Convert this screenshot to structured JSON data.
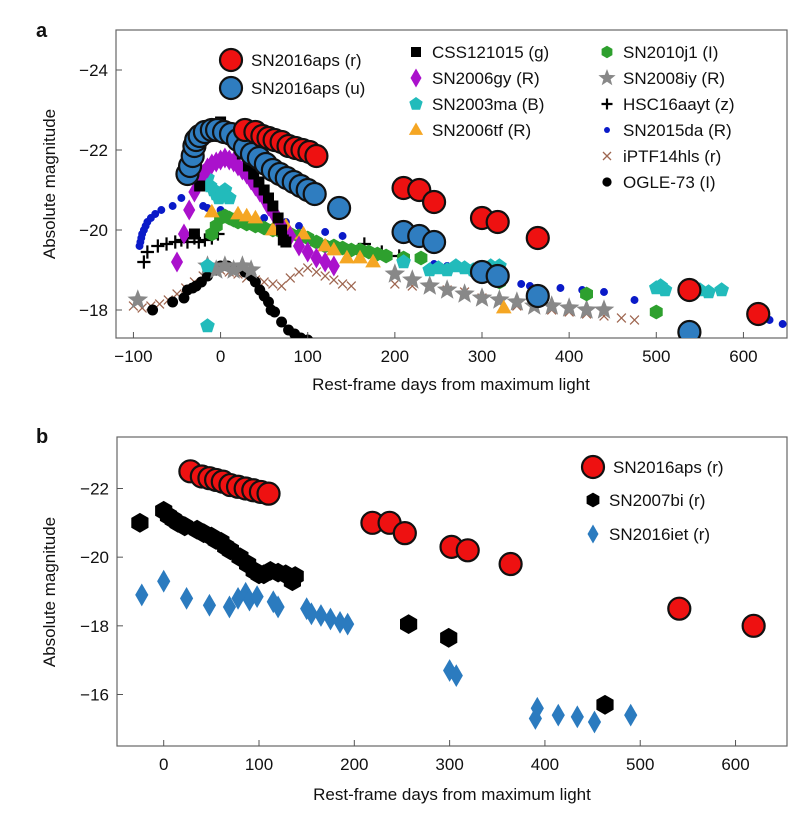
{
  "chart_data": [
    {
      "panel": "a",
      "type": "scatter",
      "title": "",
      "xlabel": "Rest-frame days from maximum light",
      "ylabel": "Absolute magnitude",
      "xlim": [
        -120,
        650
      ],
      "ylim": [
        -25.0,
        -17.3
      ],
      "y_inverted": true,
      "xticks": [
        -100,
        0,
        100,
        200,
        300,
        400,
        500,
        600
      ],
      "xtick_labels": [
        "−100",
        "0",
        "100",
        "200",
        "300",
        "400",
        "500",
        "600"
      ],
      "yticks": [
        -24,
        -22,
        -20,
        -18
      ],
      "ytick_labels": [
        "−24",
        "−22",
        "−20",
        "−18"
      ],
      "grid": false,
      "legend_placement": "top",
      "legend": [
        "SN2016aps (r)",
        "SN2016aps (u)",
        "CSS121015 (g)",
        "SN2006gy (R)",
        "SN2003ma (B)",
        "SN2006tf (R)",
        "SN2010j1 (I)",
        "SN2008iy (R)",
        "HSC16aayt (z)",
        "SN2015da (R)",
        "iPTF14hls (r)",
        "OGLE-73 (I)"
      ],
      "series": [
        {
          "name": "SN2016aps (r)",
          "marker": "big-circle",
          "color": "#ee1111",
          "x": [
            28,
            40,
            48,
            55,
            62,
            70,
            78,
            86,
            94,
            102,
            110,
            210,
            228,
            245,
            300,
            318,
            364,
            538,
            617
          ],
          "y": [
            -22.5,
            -22.45,
            -22.35,
            -22.3,
            -22.25,
            -22.2,
            -22.1,
            -22.05,
            -22.0,
            -21.95,
            -21.85,
            -21.05,
            -21.0,
            -20.7,
            -20.3,
            -20.2,
            -19.8,
            -18.5,
            -17.9
          ]
        },
        {
          "name": "SN2016aps (u)",
          "marker": "big-circle",
          "color": "#2f7dc0",
          "x": [
            -38,
            -35,
            -32,
            -30,
            -28,
            -24,
            -18,
            -10,
            -4,
            4,
            12,
            20,
            28,
            36,
            44,
            52,
            60,
            68,
            76,
            84,
            92,
            100,
            108,
            136,
            210,
            228,
            245,
            300,
            318,
            364,
            538
          ],
          "y": [
            -21.4,
            -21.6,
            -21.85,
            -22.1,
            -22.25,
            -22.35,
            -22.45,
            -22.5,
            -22.5,
            -22.45,
            -22.4,
            -22.25,
            -22.05,
            -21.9,
            -21.8,
            -21.65,
            -21.5,
            -21.4,
            -21.3,
            -21.2,
            -21.1,
            -21.0,
            -20.9,
            -20.55,
            -19.95,
            -19.85,
            -19.7,
            -18.95,
            -18.85,
            -18.35,
            -17.45
          ]
        },
        {
          "name": "CSS121015 (g)",
          "marker": "square",
          "color": "#000000",
          "x": [
            -30,
            -24,
            0,
            5,
            15,
            25,
            32,
            38,
            44,
            50,
            55,
            60,
            66,
            70,
            72,
            75
          ],
          "y": [
            -19.9,
            -21.1,
            -22.7,
            -22.55,
            -22.3,
            -21.9,
            -21.6,
            -21.4,
            -21.2,
            -21.0,
            -20.8,
            -20.6,
            -20.3,
            -20.0,
            -19.75,
            -19.7
          ]
        },
        {
          "name": "SN2006gy (R)",
          "marker": "diamond",
          "color": "#aa11cc",
          "x": [
            -50,
            -42,
            -36,
            -30,
            -25,
            -20,
            -15,
            -10,
            -5,
            0,
            5,
            10,
            15,
            20,
            25,
            30,
            35,
            40,
            45,
            50,
            55,
            60,
            65,
            70,
            80,
            90,
            100,
            110,
            120,
            130
          ],
          "y": [
            -19.2,
            -19.9,
            -20.5,
            -20.95,
            -21.2,
            -21.4,
            -21.55,
            -21.65,
            -21.7,
            -21.75,
            -21.8,
            -21.75,
            -21.7,
            -21.6,
            -21.5,
            -21.4,
            -21.25,
            -21.1,
            -20.95,
            -20.8,
            -20.6,
            -20.45,
            -20.3,
            -20.1,
            -19.85,
            -19.6,
            -19.45,
            -19.3,
            -19.2,
            -19.1
          ]
        },
        {
          "name": "SN2003ma (B)",
          "marker": "pentagon",
          "color": "#22bbbb",
          "x": [
            -15,
            -12,
            -8,
            -5,
            -2,
            2,
            5,
            10,
            -15,
            -15,
            210,
            240,
            250,
            260,
            270,
            280,
            290,
            300,
            310,
            320,
            500,
            505,
            510,
            550,
            560,
            575
          ],
          "y": [
            -21.3,
            -21.1,
            -21.0,
            -20.9,
            -20.8,
            -20.9,
            -21.0,
            -20.8,
            -19.1,
            -17.6,
            -19.2,
            -19.0,
            -19.05,
            -19.0,
            -19.1,
            -19.05,
            -19.0,
            -19.0,
            -19.1,
            -19.1,
            -18.55,
            -18.6,
            -18.5,
            -18.5,
            -18.45,
            -18.5
          ]
        },
        {
          "name": "SN2006tf (R)",
          "marker": "triangle",
          "color": "#f5a623",
          "x": [
            -10,
            20,
            30,
            40,
            60,
            75,
            80,
            95,
            120,
            130,
            145,
            160,
            175,
            325
          ],
          "y": [
            -20.45,
            -20.4,
            -20.35,
            -20.3,
            -20.0,
            -20.1,
            -19.9,
            -19.9,
            -19.6,
            -19.5,
            -19.3,
            -19.3,
            -19.2,
            -18.05
          ]
        },
        {
          "name": "SN2010j1 (I)",
          "marker": "hexagon",
          "color": "#2ea02e",
          "x": [
            -10,
            -5,
            0,
            5,
            10,
            15,
            20,
            30,
            40,
            50,
            60,
            70,
            80,
            90,
            100,
            110,
            120,
            130,
            140,
            150,
            160,
            170,
            180,
            190,
            210,
            230,
            300,
            320,
            420,
            500
          ],
          "y": [
            -19.9,
            -20.1,
            -20.3,
            -20.35,
            -20.3,
            -20.25,
            -20.2,
            -20.15,
            -20.1,
            -20.05,
            -20.0,
            -19.95,
            -19.9,
            -19.85,
            -19.8,
            -19.7,
            -19.6,
            -19.6,
            -19.55,
            -19.5,
            -19.5,
            -19.45,
            -19.4,
            -19.35,
            -19.3,
            -19.3,
            -18.9,
            -18.7,
            -18.4,
            -17.95
          ]
        },
        {
          "name": "SN2008iy (R)",
          "marker": "star",
          "color": "#888888",
          "x": [
            -95,
            -15,
            -5,
            5,
            15,
            25,
            35,
            200,
            220,
            240,
            260,
            280,
            300,
            320,
            340,
            360,
            380,
            400,
            420,
            440
          ],
          "y": [
            -18.25,
            -19.1,
            -19.0,
            -19.1,
            -19.0,
            -19.1,
            -19.0,
            -18.9,
            -18.75,
            -18.6,
            -18.5,
            -18.4,
            -18.3,
            -18.25,
            -18.2,
            -18.1,
            -18.1,
            -18.05,
            -18.0,
            -18.0
          ]
        },
        {
          "name": "HSC16aayt (z)",
          "marker": "plus",
          "color": "#000000",
          "x": [
            -88,
            -84,
            -72,
            -62,
            -52,
            -45,
            -38,
            -30,
            -25,
            -18,
            -10,
            -3,
            165,
            185,
            205
          ],
          "y": [
            -19.2,
            -19.45,
            -19.6,
            -19.65,
            -19.7,
            -19.75,
            -19.7,
            -19.8,
            -19.7,
            -19.75,
            -19.8,
            -19.9,
            -19.65,
            -19.45,
            -19.35
          ]
        },
        {
          "name": "SN2015da (R)",
          "marker": "dot",
          "color": "#0a1ac8",
          "x": [
            -93,
            -92,
            -91,
            -90,
            -88,
            -86,
            -84,
            -80,
            -75,
            -68,
            -55,
            -45,
            -20,
            -15,
            0,
            20,
            50,
            75,
            90,
            120,
            140,
            210,
            245,
            260,
            290,
            300,
            320,
            345,
            355,
            390,
            415,
            440,
            475,
            615,
            620,
            630,
            645
          ],
          "y": [
            -19.6,
            -19.7,
            -19.8,
            -19.9,
            -20.0,
            -20.1,
            -20.2,
            -20.3,
            -20.4,
            -20.5,
            -20.6,
            -20.8,
            -20.6,
            -20.55,
            -20.5,
            -20.4,
            -20.3,
            -20.2,
            -20.1,
            -19.95,
            -19.85,
            -19.3,
            -19.15,
            -19.1,
            -18.9,
            -18.85,
            -18.8,
            -18.65,
            -18.6,
            -18.55,
            -18.5,
            -18.45,
            -18.25,
            -17.8,
            -17.75,
            -17.75,
            -17.65
          ]
        },
        {
          "name": "iPTF14hls (r)",
          "marker": "x",
          "color": "#9e6650",
          "x": [
            -100,
            -90,
            -80,
            -70,
            -60,
            -50,
            -40,
            -30,
            -20,
            -10,
            0,
            10,
            20,
            30,
            40,
            50,
            60,
            70,
            80,
            90,
            100,
            110,
            120,
            130,
            140,
            150,
            200,
            220,
            240,
            260,
            280,
            300,
            320,
            340,
            360,
            380,
            400,
            420,
            440,
            460,
            475
          ],
          "y": [
            -18.1,
            -18.05,
            -18.1,
            -18.15,
            -18.25,
            -18.4,
            -18.55,
            -18.7,
            -18.85,
            -19.0,
            -19.0,
            -18.95,
            -18.9,
            -18.8,
            -18.75,
            -18.7,
            -18.65,
            -18.6,
            -18.8,
            -18.95,
            -19.05,
            -18.95,
            -18.85,
            -18.75,
            -18.65,
            -18.6,
            -18.65,
            -18.6,
            -18.55,
            -18.5,
            -18.45,
            -18.3,
            -18.2,
            -18.1,
            -18.05,
            -18.0,
            -17.95,
            -17.9,
            -17.85,
            -17.8,
            -17.75
          ]
        },
        {
          "name": "OGLE-73 (I)",
          "marker": "dot-large",
          "color": "#000000",
          "x": [
            -78,
            -55,
            -42,
            -38,
            -32,
            -28,
            -22,
            -15,
            -5,
            0,
            8,
            18,
            28,
            35,
            40,
            45,
            50,
            55,
            58,
            62,
            70,
            78,
            85,
            92,
            100
          ],
          "y": [
            -18.0,
            -18.2,
            -18.3,
            -18.5,
            -18.55,
            -18.6,
            -18.7,
            -18.85,
            -19.0,
            -19.1,
            -19.1,
            -19.05,
            -18.95,
            -18.85,
            -18.7,
            -18.5,
            -18.35,
            -18.2,
            -18.0,
            -17.95,
            -17.7,
            -17.5,
            -17.4,
            -17.3,
            -17.25
          ]
        }
      ]
    },
    {
      "panel": "b",
      "type": "scatter",
      "title": "",
      "xlabel": "Rest-frame days from maximum light",
      "ylabel": "Absolute magnitude",
      "xlim": [
        -49,
        654
      ],
      "ylim": [
        -23.5,
        -14.5
      ],
      "y_inverted": true,
      "xticks": [
        0,
        100,
        200,
        300,
        400,
        500,
        600
      ],
      "xtick_labels": [
        "0",
        "100",
        "200",
        "300",
        "400",
        "500",
        "600"
      ],
      "yticks": [
        -22,
        -20,
        -18,
        -16
      ],
      "ytick_labels": [
        "−22",
        "−20",
        "−18",
        "−16"
      ],
      "grid": false,
      "legend_placement": "top-right",
      "legend": [
        "SN2016aps (r)",
        "SN2007bi (r)",
        "SN2016iet (r)"
      ],
      "series": [
        {
          "name": "SN2016aps (r)",
          "marker": "big-circle",
          "color": "#ee1111",
          "x": [
            28,
            40,
            48,
            55,
            62,
            70,
            78,
            86,
            94,
            102,
            110,
            219,
            237,
            253,
            302,
            319,
            364,
            541,
            619
          ],
          "y": [
            -22.5,
            -22.35,
            -22.3,
            -22.25,
            -22.2,
            -22.1,
            -22.05,
            -22.0,
            -21.95,
            -21.9,
            -21.85,
            -21.0,
            -21.0,
            -20.7,
            -20.3,
            -20.2,
            -19.8,
            -18.5,
            -18.0
          ]
        },
        {
          "name": "SN2007bi (r)",
          "marker": "hexagon",
          "color": "#000000",
          "x": [
            -25,
            0,
            5,
            10,
            15,
            22,
            35,
            42,
            50,
            55,
            60,
            65,
            70,
            80,
            88,
            95,
            100,
            105,
            112,
            120,
            128,
            135,
            138,
            257,
            299,
            463
          ],
          "y": [
            -21.0,
            -21.35,
            -21.2,
            -21.1,
            -21.0,
            -20.9,
            -20.8,
            -20.7,
            -20.6,
            -20.5,
            -20.45,
            -20.3,
            -20.2,
            -20.0,
            -19.8,
            -19.6,
            -19.5,
            -19.5,
            -19.6,
            -19.55,
            -19.5,
            -19.3,
            -19.45,
            -18.05,
            -17.65,
            -15.7
          ]
        },
        {
          "name": "SN2016iet (r)",
          "marker": "diamond",
          "color": "#2b7bbf",
          "x": [
            -23,
            0,
            24,
            48,
            69,
            78,
            86,
            90,
            98,
            115,
            120,
            150,
            155,
            165,
            175,
            185,
            193,
            300,
            307,
            390,
            392,
            414,
            434,
            452,
            490
          ],
          "y": [
            -18.9,
            -19.3,
            -18.8,
            -18.6,
            -18.55,
            -18.8,
            -18.95,
            -18.75,
            -18.85,
            -18.7,
            -18.55,
            -18.5,
            -18.35,
            -18.3,
            -18.2,
            -18.1,
            -18.05,
            -16.7,
            -16.55,
            -15.3,
            -15.6,
            -15.4,
            -15.35,
            -15.2,
            -15.4
          ]
        }
      ]
    }
  ]
}
